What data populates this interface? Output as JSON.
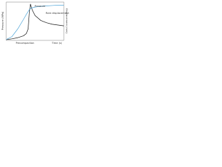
{
  "chart_data": {
    "type": "line",
    "x_label": "Time (s)",
    "y_label": "Pressure (MPa)",
    "y2_label": "Displacement (mm)",
    "annotations": [
      "Precompaction"
    ],
    "x": [
      0,
      10,
      20,
      30,
      35,
      38,
      40,
      42,
      45,
      50,
      60,
      70,
      80,
      90,
      100
    ],
    "xlim": [
      0,
      100
    ],
    "ylim": [
      0,
      100
    ],
    "y2lim": [
      0,
      100
    ],
    "series": [
      {
        "name": "Pressure",
        "color": "#111111",
        "values": [
          2,
          4,
          7,
          12,
          18,
          30,
          70,
          95,
          80,
          65,
          52,
          46,
          42,
          40,
          38
        ]
      },
      {
        "name": "Ram displacement",
        "color": "#4aa3d8",
        "axis": "y2",
        "values": [
          2,
          10,
          30,
          55,
          68,
          75,
          80,
          83,
          85,
          87,
          89,
          90,
          91,
          92,
          92
        ]
      }
    ]
  }
}
